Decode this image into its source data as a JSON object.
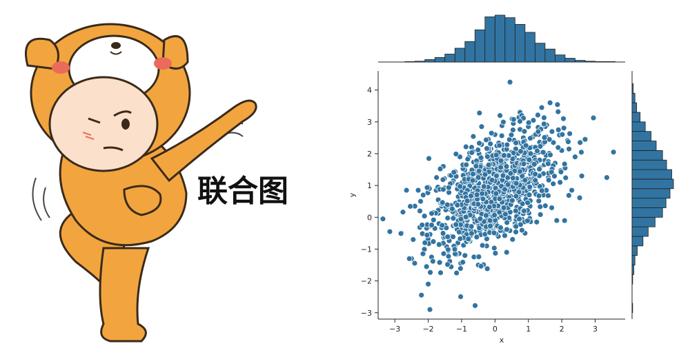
{
  "banner": {
    "title": "联合图"
  },
  "colors": {
    "marker": "#3274a1",
    "marker_edge": "#ffffff",
    "bar": "#3274a1",
    "bar_edge": "#1f1f1f",
    "axis": "#222222",
    "bear_fur": "#f2a53e",
    "bear_face": "#fbe0cc",
    "bear_cheek": "#ea6b5a"
  },
  "icons": {
    "mascot": "cartoon-bear-costume-kid-icon"
  },
  "chart_data": {
    "type": "scatter",
    "subtype": "jointplot",
    "xlabel": "x",
    "ylabel": "y",
    "xlim": [
      -3.5,
      3.9
    ],
    "ylim": [
      -3.2,
      4.6
    ],
    "xticks": [
      -3,
      -2,
      -1,
      0,
      1,
      2,
      3
    ],
    "yticks": [
      -3,
      -2,
      -1,
      0,
      1,
      2,
      3,
      4
    ],
    "grid": false,
    "legend": "none",
    "marginal_x": {
      "type": "histogram",
      "bin_edges": [
        -2.7,
        -2.4,
        -2.1,
        -1.8,
        -1.5,
        -1.2,
        -0.9,
        -0.6,
        -0.3,
        0.0,
        0.3,
        0.6,
        0.9,
        1.2,
        1.5,
        1.8,
        2.1,
        2.4,
        2.7,
        3.0,
        3.3,
        3.6
      ],
      "counts": [
        1,
        2,
        6,
        11,
        19,
        33,
        49,
        77,
        108,
        112,
        106,
        90,
        71,
        45,
        31,
        17,
        9,
        4,
        2,
        1,
        1
      ]
    },
    "marginal_y": {
      "type": "histogram",
      "bin_edges": [
        -3.0,
        -2.7,
        -2.4,
        -2.1,
        -1.8,
        -1.5,
        -1.2,
        -0.9,
        -0.6,
        -0.3,
        0.0,
        0.3,
        0.6,
        0.9,
        1.2,
        1.5,
        1.8,
        2.1,
        2.4,
        2.7,
        3.0,
        3.3,
        3.6,
        3.9,
        4.2
      ],
      "counts": [
        1,
        0,
        0,
        1,
        3,
        5,
        9,
        19,
        28,
        40,
        53,
        59,
        66,
        72,
        69,
        60,
        53,
        42,
        33,
        23,
        14,
        8,
        5,
        2
      ]
    },
    "points": [
      [
        -3.15,
        -0.45
      ],
      [
        -2.65,
        0.85
      ],
      [
        -2.5,
        -1.3
      ],
      [
        -2.45,
        -0.7
      ],
      [
        -2.4,
        0.35
      ],
      [
        -2.3,
        0.85
      ],
      [
        -2.25,
        0.2
      ],
      [
        -2.15,
        0.7
      ],
      [
        -2.05,
        -1.55
      ],
      [
        -2.0,
        0.95
      ],
      [
        -2.0,
        -2.1
      ],
      [
        -1.98,
        1.85
      ],
      [
        -1.95,
        -2.9
      ],
      [
        -1.9,
        -1.25
      ],
      [
        -1.85,
        0.15
      ],
      [
        -1.8,
        -0.35
      ],
      [
        -1.75,
        1.25
      ],
      [
        -1.7,
        0.55
      ],
      [
        -1.65,
        -0.85
      ],
      [
        -1.6,
        0.35
      ],
      [
        -1.55,
        1.6
      ],
      [
        -1.5,
        -0.25
      ],
      [
        -1.45,
        0.9
      ],
      [
        -1.4,
        -1.05
      ],
      [
        -1.35,
        0.25
      ],
      [
        -1.3,
        -0.6
      ],
      [
        -1.25,
        1.15
      ],
      [
        -1.2,
        0.05
      ],
      [
        -1.15,
        -1.75
      ],
      [
        -1.1,
        0.65
      ],
      [
        -1.05,
        1.9
      ],
      [
        -1.0,
        -0.4
      ],
      [
        -0.95,
        0.3
      ],
      [
        -0.9,
        -1.2
      ],
      [
        -0.85,
        1.35
      ],
      [
        -0.8,
        0.55
      ],
      [
        -0.75,
        -0.75
      ],
      [
        -0.7,
        2.2
      ],
      [
        -0.65,
        0.95
      ],
      [
        -0.6,
        -0.15
      ],
      [
        -0.55,
        1.6
      ],
      [
        -0.5,
        -1.5
      ],
      [
        -0.45,
        0.7
      ],
      [
        -0.4,
        2.85
      ],
      [
        -0.35,
        0.1
      ],
      [
        -0.3,
        1.25
      ],
      [
        -0.25,
        -0.9
      ],
      [
        -0.2,
        2.45
      ],
      [
        -0.15,
        0.45
      ],
      [
        -0.1,
        1.85
      ],
      [
        -0.05,
        -0.35
      ],
      [
        0.0,
        2.6
      ],
      [
        0.05,
        1.05
      ],
      [
        0.1,
        -0.6
      ],
      [
        0.15,
        3.2
      ],
      [
        0.2,
        0.25
      ],
      [
        0.25,
        1.7
      ],
      [
        0.3,
        2.25
      ],
      [
        0.35,
        -1.1
      ],
      [
        0.4,
        0.8
      ],
      [
        0.45,
        4.25
      ],
      [
        0.5,
        1.45
      ],
      [
        0.55,
        2.95
      ],
      [
        0.6,
        -0.2
      ],
      [
        0.65,
        2.0
      ],
      [
        0.7,
        0.55
      ],
      [
        0.75,
        3.3
      ],
      [
        0.8,
        1.15
      ],
      [
        0.85,
        2.5
      ],
      [
        0.9,
        -0.5
      ],
      [
        0.95,
        1.8
      ],
      [
        1.0,
        2.85
      ],
      [
        1.05,
        0.35
      ],
      [
        1.1,
        2.2
      ],
      [
        1.15,
        3.05
      ],
      [
        1.2,
        1.0
      ],
      [
        1.25,
        -0.15
      ],
      [
        1.3,
        2.6
      ],
      [
        1.35,
        1.55
      ],
      [
        1.4,
        3.45
      ],
      [
        1.45,
        0.7
      ],
      [
        1.5,
        2.0
      ],
      [
        1.55,
        2.9
      ],
      [
        1.6,
        1.25
      ],
      [
        1.65,
        3.6
      ],
      [
        1.7,
        0.3
      ],
      [
        1.75,
        2.35
      ],
      [
        1.8,
        1.7
      ],
      [
        1.85,
        -0.1
      ],
      [
        1.9,
        2.75
      ],
      [
        1.95,
        1.1
      ],
      [
        2.0,
        2.1
      ],
      [
        2.05,
        3.1
      ],
      [
        2.1,
        1.55
      ],
      [
        2.2,
        2.4
      ],
      [
        2.3,
        0.85
      ],
      [
        2.4,
        1.9
      ],
      [
        2.55,
        2.35
      ],
      [
        2.6,
        1.3
      ],
      [
        2.7,
        2.45
      ],
      [
        3.35,
        1.25
      ],
      [
        3.55,
        2.05
      ]
    ]
  }
}
